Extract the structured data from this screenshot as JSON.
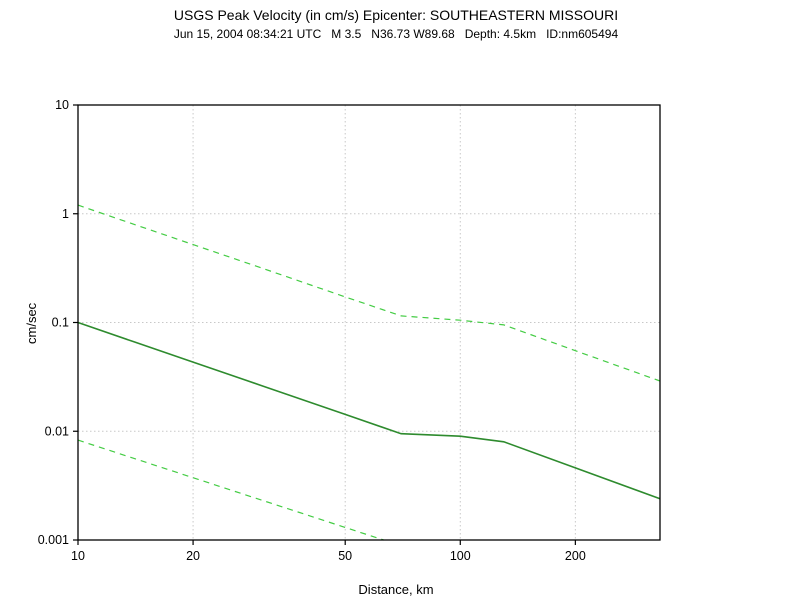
{
  "chart_data": {
    "type": "line",
    "title": "USGS Peak Velocity (in cm/s) Epicenter: SOUTHEASTERN MISSOURI",
    "subtitle": "Jun 15, 2004 08:34:21 UTC   M 3.5   N36.73 W89.68   Depth: 4.5km   ID:nm605494",
    "xlabel": "Distance, km",
    "ylabel": "cm/sec",
    "xscale": "log",
    "yscale": "log",
    "xlim": [
      10,
      333
    ],
    "ylim": [
      0.001,
      10
    ],
    "xticks": [
      10,
      20,
      50,
      100,
      200
    ],
    "yticks": [
      0.001,
      0.01,
      0.1,
      1,
      10
    ],
    "grid": true,
    "legend": "none",
    "colors": {
      "grid": "#c8c8c8",
      "frame": "#000000",
      "median_line": "#2e8b2e",
      "sigma_line": "#44cc44"
    },
    "series": [
      {
        "name": "median-peak-velocity",
        "style": "solid",
        "color": "#2e8b2e",
        "x": [
          10,
          14,
          20,
          30,
          50,
          70,
          100,
          130,
          200,
          333
        ],
        "y": [
          0.1,
          0.0665,
          0.0432,
          0.0265,
          0.0143,
          0.0095,
          0.009,
          0.008,
          0.0046,
          0.0024
        ]
      },
      {
        "name": "plus-one-sigma",
        "style": "dashed",
        "color": "#44cc44",
        "x": [
          10,
          14,
          20,
          30,
          50,
          70,
          100,
          130,
          200,
          333
        ],
        "y": [
          1.2,
          0.8,
          0.52,
          0.32,
          0.172,
          0.115,
          0.105,
          0.095,
          0.055,
          0.029
        ]
      },
      {
        "name": "minus-one-sigma",
        "style": "dashed",
        "color": "#44cc44",
        "x": [
          10,
          63
        ],
        "y": [
          0.0083,
          0.001
        ]
      }
    ]
  }
}
